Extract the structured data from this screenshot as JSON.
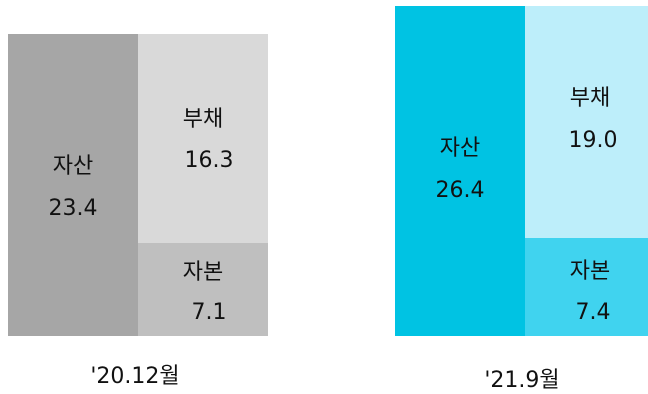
{
  "chart_data": {
    "type": "bar",
    "title": "",
    "panels": [
      {
        "period": "'20.12월",
        "asset": {
          "label": "자산",
          "value": "23.4"
        },
        "liability": {
          "label": "부채",
          "value": "16.3"
        },
        "equity": {
          "label": "자본",
          "value": "7.1"
        },
        "colors": {
          "asset": "#a6a6a6",
          "liability": "#d9d9d9",
          "equity": "#bfbfbf"
        }
      },
      {
        "period": "'21.9월",
        "asset": {
          "label": "자산",
          "value": "26.4"
        },
        "liability": {
          "label": "부채",
          "value": "19.0"
        },
        "equity": {
          "label": "자본",
          "value": "7.4"
        },
        "colors": {
          "asset": "#00c3e3",
          "liability": "#bdeefa",
          "equity": "#40d3ef"
        }
      }
    ]
  }
}
